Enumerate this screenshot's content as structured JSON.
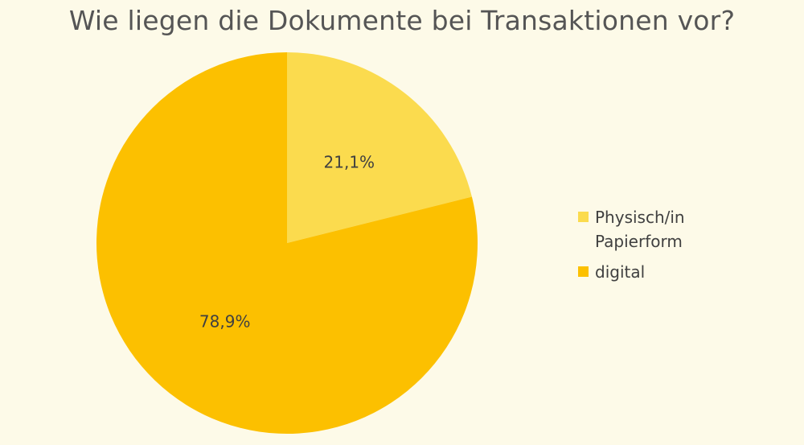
{
  "chart_data": {
    "type": "pie",
    "title": "Wie liegen die Dokumente bei Transaktionen vor?",
    "categories": [
      "Physisch/in Papierform",
      "digital"
    ],
    "legend_lines": [
      [
        "Physisch/in",
        "Papierform"
      ],
      [
        "digital"
      ]
    ],
    "values": [
      21.1,
      78.9
    ],
    "data_labels": [
      "21,1%",
      "78,9%"
    ],
    "colors": [
      "#fbdb4e",
      "#fcc000"
    ],
    "start_angle": "12 o'clock, clockwise",
    "legend_position": "right"
  }
}
